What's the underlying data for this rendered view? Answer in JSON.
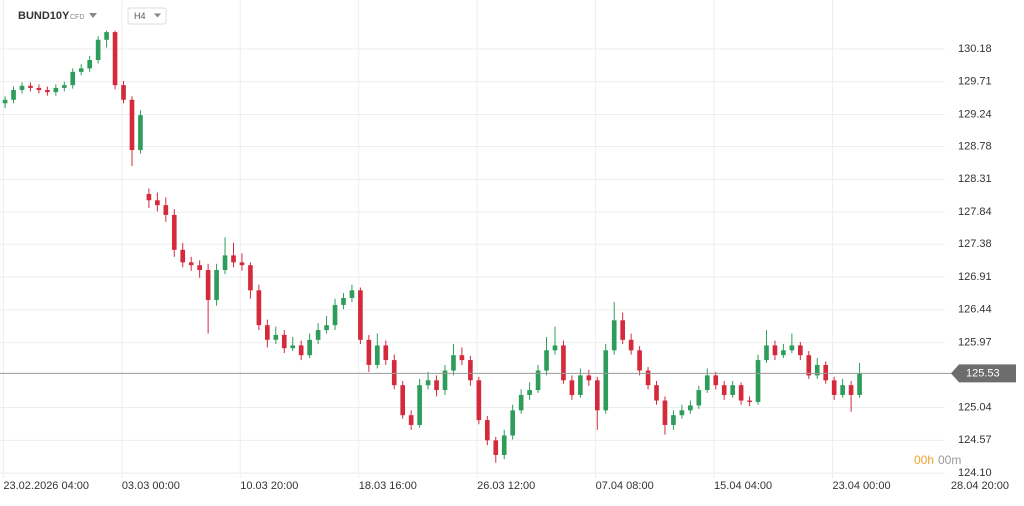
{
  "chart_data": {
    "type": "candlestick",
    "title": "BUND10Y",
    "instrument_type": "CFD",
    "timeframe": "H4",
    "countdown": {
      "hours": "00h",
      "minutes": "00m"
    },
    "current_price": 125.53,
    "up_color": "#2e9d5c",
    "down_color": "#d42a3c",
    "grid": true,
    "ylim": [
      124.03,
      130.88
    ],
    "yticks": [
      130.18,
      129.71,
      129.24,
      128.78,
      128.31,
      127.84,
      127.38,
      126.91,
      126.44,
      125.97,
      125.04,
      124.57,
      {
        "value": 124.1,
        "label": "124.10"
      }
    ],
    "xlim": [
      -0.6,
      111.1
    ],
    "xticks": [
      {
        "value": -0.2,
        "label": "23.02.2026 04:00"
      },
      {
        "value": 13.8,
        "label": "03.03 00:00"
      },
      {
        "value": 27.8,
        "label": "10.03 20:00"
      },
      {
        "value": 41.8,
        "label": "18.03 16:00"
      },
      {
        "value": 55.8,
        "label": "26.03 12:00"
      },
      {
        "value": 69.8,
        "label": "07.04 08:00"
      },
      {
        "value": 83.8,
        "label": "15.04 04:00"
      },
      {
        "value": 97.8,
        "label": "23.04 00:00"
      },
      {
        "value": 111.8,
        "label": "28.04 20:00"
      }
    ],
    "open": [
      129.4,
      129.45,
      129.59,
      129.65,
      129.62,
      129.59,
      129.56,
      129.62,
      129.66,
      129.85,
      129.9,
      130.02,
      130.31,
      130.42,
      129.66,
      129.45,
      128.73,
      128.1,
      128.01,
      127.94,
      127.8,
      127.3,
      127.12,
      127.08,
      127.01,
      126.58,
      127.01,
      127.22,
      127.12,
      127.08,
      126.72,
      126.22,
      126.01,
      126.08,
      125.89,
      125.93,
      125.79,
      126.01,
      126.15,
      126.22,
      126.51,
      126.61,
      126.72,
      126.01,
      125.65,
      125.93,
      125.72,
      125.36,
      124.93,
      124.79,
      125.36,
      125.43,
      125.29,
      125.57,
      125.79,
      125.72,
      125.43,
      124.86,
      124.57,
      124.36,
      124.64,
      125.0,
      125.22,
      125.29,
      125.57,
      125.86,
      125.93,
      125.43,
      125.22,
      125.5,
      125.43,
      125.0,
      125.86,
      126.29,
      126.01,
      125.86,
      125.57,
      125.36,
      125.14,
      124.79,
      124.93,
      125.0,
      125.07,
      125.29,
      125.5,
      125.36,
      125.22,
      125.36,
      125.14,
      125.12,
      125.72,
      125.93,
      125.79,
      125.86,
      125.93,
      125.79,
      125.5,
      125.65,
      125.43,
      125.22,
      125.36,
      125.22
    ],
    "high": [
      129.5,
      129.64,
      129.7,
      129.7,
      129.67,
      129.64,
      129.67,
      129.71,
      129.9,
      129.96,
      130.08,
      130.36,
      130.44,
      130.44,
      129.72,
      129.5,
      129.3,
      128.18,
      128.12,
      128.05,
      127.88,
      127.4,
      127.2,
      127.15,
      127.1,
      127.1,
      127.48,
      127.4,
      127.25,
      127.12,
      126.8,
      126.3,
      126.2,
      126.15,
      126.05,
      126.0,
      126.1,
      126.25,
      126.35,
      126.6,
      126.68,
      126.8,
      126.76,
      126.08,
      126.1,
      126.0,
      125.8,
      125.42,
      125.0,
      125.45,
      125.55,
      125.5,
      125.65,
      125.95,
      125.9,
      125.78,
      125.48,
      124.92,
      124.62,
      124.72,
      125.08,
      125.3,
      125.4,
      125.65,
      126.05,
      126.2,
      126.0,
      125.5,
      125.6,
      125.58,
      125.48,
      125.95,
      126.55,
      126.4,
      126.1,
      125.92,
      125.62,
      125.42,
      125.2,
      125.0,
      125.08,
      125.14,
      125.35,
      125.6,
      125.55,
      125.42,
      125.42,
      125.4,
      125.2,
      125.8,
      126.15,
      126.0,
      125.95,
      126.1,
      125.98,
      125.85,
      125.75,
      125.7,
      125.48,
      125.45,
      125.42,
      125.68
    ],
    "low": [
      129.33,
      129.4,
      129.54,
      129.57,
      129.54,
      129.51,
      129.51,
      129.57,
      129.61,
      129.8,
      129.85,
      129.97,
      130.2,
      129.6,
      129.4,
      128.5,
      128.68,
      127.9,
      127.85,
      127.7,
      127.2,
      127.05,
      127.0,
      126.9,
      126.1,
      126.5,
      126.95,
      127.05,
      127.0,
      126.6,
      126.15,
      125.9,
      125.95,
      125.82,
      125.85,
      125.72,
      125.75,
      125.95,
      126.1,
      126.15,
      126.45,
      126.55,
      125.95,
      125.55,
      125.6,
      125.65,
      125.3,
      124.88,
      124.72,
      124.75,
      125.3,
      125.2,
      125.22,
      125.5,
      125.65,
      125.35,
      124.8,
      124.5,
      124.25,
      124.3,
      124.58,
      124.95,
      125.15,
      125.25,
      125.5,
      125.8,
      125.38,
      125.15,
      125.18,
      125.35,
      124.72,
      124.95,
      125.8,
      125.95,
      125.8,
      125.5,
      125.3,
      125.08,
      124.65,
      124.72,
      124.88,
      124.95,
      125.02,
      125.25,
      125.3,
      125.15,
      125.18,
      125.08,
      125.06,
      125.08,
      125.68,
      125.72,
      125.75,
      125.82,
      125.72,
      125.45,
      125.45,
      125.38,
      125.15,
      125.18,
      124.98,
      125.18
    ],
    "close": [
      129.45,
      129.59,
      129.65,
      129.62,
      129.59,
      129.56,
      129.62,
      129.66,
      129.85,
      129.9,
      130.02,
      130.31,
      130.42,
      129.66,
      129.45,
      128.73,
      129.23,
      128.01,
      127.94,
      127.8,
      127.3,
      127.12,
      127.08,
      127.01,
      126.58,
      127.01,
      127.22,
      127.12,
      127.08,
      126.72,
      126.22,
      126.01,
      126.08,
      125.89,
      125.93,
      125.79,
      126.01,
      126.15,
      126.22,
      126.51,
      126.61,
      126.72,
      126.01,
      125.65,
      125.93,
      125.72,
      125.36,
      124.93,
      124.79,
      125.36,
      125.43,
      125.29,
      125.57,
      125.79,
      125.72,
      125.43,
      124.86,
      124.57,
      124.36,
      124.64,
      125.0,
      125.22,
      125.29,
      125.57,
      125.86,
      125.93,
      125.43,
      125.22,
      125.5,
      125.43,
      125.0,
      125.86,
      126.29,
      126.01,
      125.86,
      125.57,
      125.36,
      125.14,
      124.79,
      124.93,
      125.0,
      125.07,
      125.29,
      125.5,
      125.36,
      125.22,
      125.36,
      125.14,
      125.12,
      125.72,
      125.93,
      125.79,
      125.86,
      125.93,
      125.79,
      125.5,
      125.65,
      125.43,
      125.22,
      125.36,
      125.22,
      125.53
    ]
  }
}
